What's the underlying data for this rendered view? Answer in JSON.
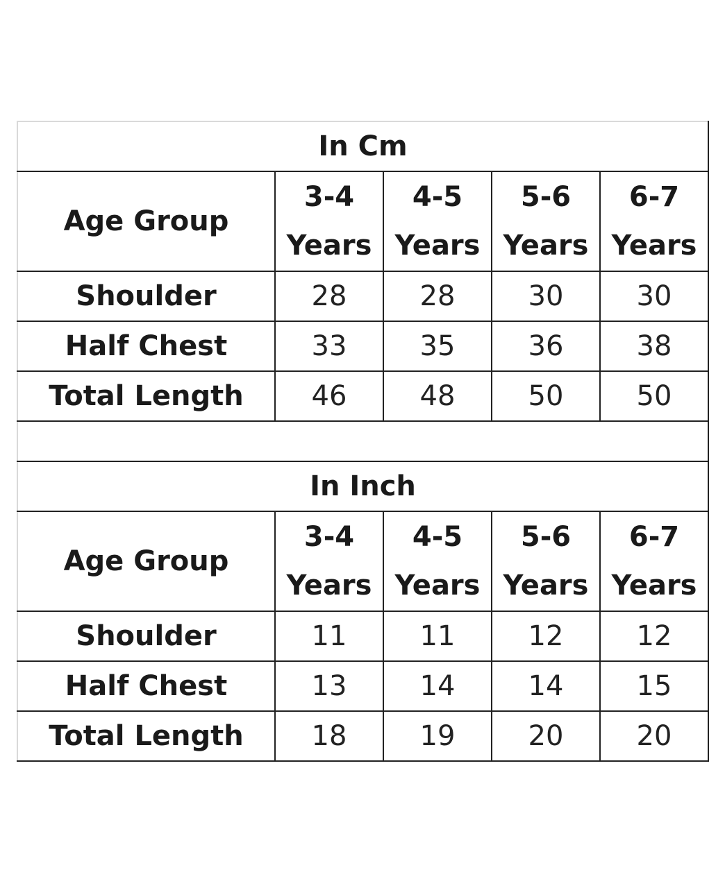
{
  "cm": {
    "title": "In Cm",
    "header_label": "Age Group",
    "ages": [
      {
        "top": "3-4",
        "bottom": "Years"
      },
      {
        "top": "4-5",
        "bottom": "Years"
      },
      {
        "top": "5-6",
        "bottom": "Years"
      },
      {
        "top": "6-7",
        "bottom": "Years"
      }
    ],
    "rows": [
      {
        "label": "Shoulder",
        "values": [
          "28",
          "28",
          "30",
          "30"
        ]
      },
      {
        "label": "Half Chest",
        "values": [
          "33",
          "35",
          "36",
          "38"
        ]
      },
      {
        "label": "Total Length",
        "values": [
          "46",
          "48",
          "50",
          "50"
        ]
      }
    ]
  },
  "inch": {
    "title": "In Inch",
    "header_label": "Age Group",
    "ages": [
      {
        "top": "3-4",
        "bottom": "Years"
      },
      {
        "top": "4-5",
        "bottom": "Years"
      },
      {
        "top": "5-6",
        "bottom": "Years"
      },
      {
        "top": "6-7",
        "bottom": "Years"
      }
    ],
    "rows": [
      {
        "label": "Shoulder",
        "values": [
          "11",
          "11",
          "12",
          "12"
        ]
      },
      {
        "label": "Half Chest",
        "values": [
          "13",
          "14",
          "14",
          "15"
        ]
      },
      {
        "label": "Total Length",
        "values": [
          "18",
          "19",
          "20",
          "20"
        ]
      }
    ]
  }
}
